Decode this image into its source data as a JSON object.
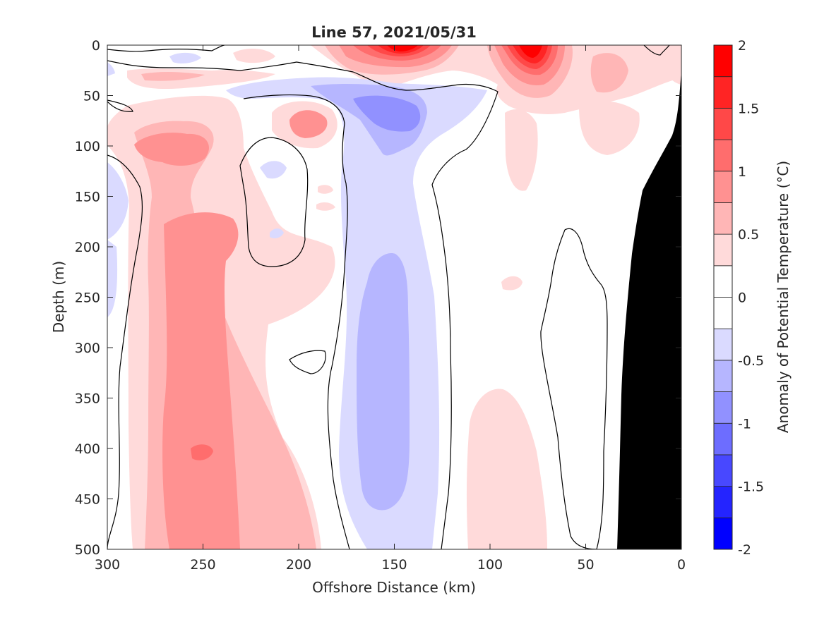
{
  "chart_data": {
    "type": "heatmap",
    "subtype": "filled-contour section",
    "title": "Line 57, 2021/05/31",
    "xlabel": "Offshore Distance (km)",
    "ylabel": "Depth (m)",
    "colorbar_label": "Anomaly of Potential Temperature (°C)",
    "x_direction": "reversed",
    "y_direction": "reversed",
    "xlim": [
      0,
      300
    ],
    "ylim": [
      0,
      500
    ],
    "x_ticks": [
      300,
      250,
      200,
      150,
      100,
      50,
      0
    ],
    "y_ticks": [
      0,
      50,
      100,
      150,
      200,
      250,
      300,
      350,
      400,
      450,
      500
    ],
    "clim": [
      -2,
      2
    ],
    "contour_step": 0.25,
    "colorbar_ticks": [
      "2",
      "1.5",
      "1",
      "0.5",
      "0",
      "-0.5",
      "-1",
      "-1.5",
      "-2"
    ],
    "colorbar_tick_values": [
      2,
      1.5,
      1,
      0.5,
      0,
      -0.5,
      -1,
      -1.5,
      -2
    ],
    "zero_contour_shown": true,
    "land_mask_color": "#000000",
    "color_levels": [
      {
        "range": [
          -2.0,
          -1.75
        ],
        "color": "#0000ff"
      },
      {
        "range": [
          -1.75,
          -1.5
        ],
        "color": "#2424ff"
      },
      {
        "range": [
          -1.5,
          -1.25
        ],
        "color": "#4848ff"
      },
      {
        "range": [
          -1.25,
          -1.0
        ],
        "color": "#6d6dff"
      },
      {
        "range": [
          -1.0,
          -0.75
        ],
        "color": "#9191ff"
      },
      {
        "range": [
          -0.75,
          -0.5
        ],
        "color": "#b6b6ff"
      },
      {
        "range": [
          -0.5,
          -0.25
        ],
        "color": "#dadaff"
      },
      {
        "range": [
          -0.25,
          0.0
        ],
        "color": "#ffffff"
      },
      {
        "range": [
          0.0,
          0.25
        ],
        "color": "#ffffff"
      },
      {
        "range": [
          0.25,
          0.5
        ],
        "color": "#ffdada"
      },
      {
        "range": [
          0.5,
          0.75
        ],
        "color": "#ffb6b6"
      },
      {
        "range": [
          0.75,
          1.0
        ],
        "color": "#ff9191"
      },
      {
        "range": [
          1.0,
          1.25
        ],
        "color": "#ff6d6d"
      },
      {
        "range": [
          1.25,
          1.5
        ],
        "color": "#ff4848"
      },
      {
        "range": [
          1.5,
          1.75
        ],
        "color": "#ff2424"
      },
      {
        "range": [
          1.75,
          2.0
        ],
        "color": "#ff0000"
      }
    ],
    "features": [
      {
        "name": "offshore warm anomaly column",
        "x_range_km": [
          175,
          285
        ],
        "depth_range_m": [
          80,
          500
        ],
        "peak_value": 1.0,
        "peak_location": {
          "x_km": 252,
          "depth_m": 408
        }
      },
      {
        "name": "warm core near 195 km",
        "x_km": 195,
        "depth_m": 70,
        "peak_value": 0.75
      },
      {
        "name": "surface warm anomaly",
        "x_range_km": [
          110,
          190
        ],
        "depth_range_m": [
          0,
          40
        ],
        "peak_value": 2.0,
        "peak_location": {
          "x_km": 148,
          "depth_m": 5
        }
      },
      {
        "name": "surface warm anomaly",
        "x_range_km": [
          55,
          105
        ],
        "depth_range_m": [
          0,
          60
        ],
        "peak_value": 2.0,
        "peak_location": {
          "x_km": 80,
          "depth_m": 10
        }
      },
      {
        "name": "cold anomaly column",
        "x_range_km": [
          125,
          175
        ],
        "depth_range_m": [
          40,
          500
        ],
        "peak_value": -0.75,
        "peak_location": {
          "x_km": 145,
          "depth_m": 70
        }
      },
      {
        "name": "nearshore weak warm anomaly",
        "x_range_km": [
          75,
          110
        ],
        "depth_range_m": [
          340,
          500
        ],
        "peak_value": 0.5
      },
      {
        "name": "coastal topography (land/seafloor mask)",
        "x_range_km": [
          0,
          33
        ],
        "depth_range_m": [
          35,
          500
        ]
      }
    ]
  }
}
